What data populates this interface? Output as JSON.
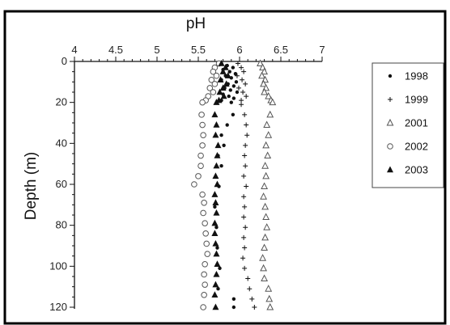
{
  "chart_data": {
    "type": "scatter",
    "title": "",
    "xlabel": "pH",
    "ylabel": "Depth (m)",
    "x_axis_position": "top",
    "y_axis_direction": "downward",
    "xlim": [
      4,
      7
    ],
    "ylim": [
      0,
      120
    ],
    "x_ticks": [
      "4",
      "4.5",
      "5",
      "5.5",
      "6",
      "6.5",
      "7"
    ],
    "y_ticks": [
      "0",
      "20",
      "40",
      "60",
      "80",
      "100",
      "120"
    ],
    "grid": false,
    "legend_position": "right",
    "colors": {
      "marker": "#111111",
      "hollow": "#555555",
      "axis": "#111111",
      "border": "#000000"
    },
    "series": [
      {
        "name": "1998",
        "marker": "small-dot",
        "points": [
          [
            5.78,
            1
          ],
          [
            5.85,
            2
          ],
          [
            5.92,
            3
          ],
          [
            5.8,
            4
          ],
          [
            5.88,
            5
          ],
          [
            5.95,
            6
          ],
          [
            5.83,
            7
          ],
          [
            5.9,
            8
          ],
          [
            5.78,
            9
          ],
          [
            5.96,
            10
          ],
          [
            5.86,
            11
          ],
          [
            5.93,
            12
          ],
          [
            5.82,
            13
          ],
          [
            5.89,
            14
          ],
          [
            5.97,
            15
          ],
          [
            5.8,
            16
          ],
          [
            5.87,
            17
          ],
          [
            5.93,
            18
          ],
          [
            5.78,
            19
          ],
          [
            5.9,
            20
          ],
          [
            5.92,
            26
          ],
          [
            5.85,
            31
          ],
          [
            5.78,
            36
          ],
          [
            5.81,
            41
          ],
          [
            5.74,
            46
          ],
          [
            5.78,
            51
          ],
          [
            5.75,
            61
          ],
          [
            5.7,
            71
          ],
          [
            5.72,
            81
          ],
          [
            5.73,
            91
          ],
          [
            5.76,
            101
          ],
          [
            5.74,
            111
          ],
          [
            5.93,
            116
          ],
          [
            5.93,
            120
          ]
        ]
      },
      {
        "name": "1999",
        "marker": "plus",
        "points": [
          [
            5.98,
            1
          ],
          [
            6.02,
            3
          ],
          [
            6.05,
            5
          ],
          [
            5.97,
            7
          ],
          [
            6.03,
            9
          ],
          [
            6.07,
            11
          ],
          [
            5.99,
            13
          ],
          [
            6.04,
            15
          ],
          [
            6.08,
            17
          ],
          [
            6.02,
            19
          ],
          [
            6.02,
            21
          ],
          [
            6.06,
            26
          ],
          [
            6.08,
            31
          ],
          [
            6.09,
            36
          ],
          [
            6.07,
            41
          ],
          [
            6.06,
            46
          ],
          [
            6.07,
            51
          ],
          [
            6.05,
            56
          ],
          [
            6.08,
            61
          ],
          [
            6.05,
            66
          ],
          [
            6.06,
            71
          ],
          [
            6.05,
            76
          ],
          [
            6.07,
            81
          ],
          [
            6.05,
            86
          ],
          [
            6.06,
            91
          ],
          [
            6.04,
            96
          ],
          [
            6.06,
            101
          ],
          [
            6.1,
            106
          ],
          [
            6.12,
            111
          ],
          [
            6.15,
            116
          ],
          [
            6.18,
            120
          ]
        ]
      },
      {
        "name": "2001",
        "marker": "hollow-triangle",
        "points": [
          [
            6.25,
            1
          ],
          [
            6.28,
            3
          ],
          [
            6.3,
            5
          ],
          [
            6.27,
            7
          ],
          [
            6.31,
            9
          ],
          [
            6.29,
            11
          ],
          [
            6.32,
            13
          ],
          [
            6.3,
            15
          ],
          [
            6.35,
            17
          ],
          [
            6.38,
            19
          ],
          [
            6.4,
            20
          ],
          [
            6.37,
            26
          ],
          [
            6.33,
            31
          ],
          [
            6.35,
            36
          ],
          [
            6.32,
            41
          ],
          [
            6.34,
            46
          ],
          [
            6.31,
            51
          ],
          [
            6.32,
            56
          ],
          [
            6.3,
            61
          ],
          [
            6.29,
            66
          ],
          [
            6.31,
            71
          ],
          [
            6.32,
            76
          ],
          [
            6.33,
            81
          ],
          [
            6.31,
            86
          ],
          [
            6.3,
            91
          ],
          [
            6.28,
            96
          ],
          [
            6.29,
            101
          ],
          [
            6.3,
            106
          ],
          [
            6.35,
            111
          ],
          [
            6.36,
            116
          ],
          [
            6.37,
            120
          ]
        ]
      },
      {
        "name": "2002",
        "marker": "hollow-circle",
        "points": [
          [
            5.75,
            1
          ],
          [
            5.7,
            3
          ],
          [
            5.68,
            5
          ],
          [
            5.72,
            7
          ],
          [
            5.66,
            9
          ],
          [
            5.7,
            11
          ],
          [
            5.64,
            13
          ],
          [
            5.68,
            15
          ],
          [
            5.62,
            17
          ],
          [
            5.59,
            19
          ],
          [
            5.55,
            20
          ],
          [
            5.54,
            26
          ],
          [
            5.55,
            31
          ],
          [
            5.56,
            36
          ],
          [
            5.55,
            41
          ],
          [
            5.53,
            46
          ],
          [
            5.53,
            51
          ],
          [
            5.5,
            56
          ],
          [
            5.45,
            60
          ],
          [
            5.55,
            65
          ],
          [
            5.57,
            69
          ],
          [
            5.56,
            74
          ],
          [
            5.58,
            79
          ],
          [
            5.59,
            84
          ],
          [
            5.6,
            89
          ],
          [
            5.61,
            94
          ],
          [
            5.58,
            99
          ],
          [
            5.57,
            104
          ],
          [
            5.58,
            109
          ],
          [
            5.57,
            114
          ],
          [
            5.56,
            120
          ]
        ]
      },
      {
        "name": "2003",
        "marker": "filled-triangle",
        "points": [
          [
            5.78,
            1
          ],
          [
            5.83,
            3
          ],
          [
            5.8,
            5
          ],
          [
            5.86,
            7
          ],
          [
            5.77,
            9
          ],
          [
            5.84,
            11
          ],
          [
            5.8,
            13
          ],
          [
            5.76,
            15
          ],
          [
            5.81,
            17
          ],
          [
            5.75,
            19
          ],
          [
            5.72,
            20
          ],
          [
            5.7,
            26
          ],
          [
            5.72,
            31
          ],
          [
            5.71,
            36
          ],
          [
            5.74,
            41
          ],
          [
            5.73,
            46
          ],
          [
            5.72,
            51
          ],
          [
            5.71,
            56
          ],
          [
            5.73,
            60
          ],
          [
            5.7,
            65
          ],
          [
            5.71,
            69
          ],
          [
            5.72,
            74
          ],
          [
            5.7,
            79
          ],
          [
            5.7,
            84
          ],
          [
            5.71,
            89
          ],
          [
            5.72,
            94
          ],
          [
            5.73,
            99
          ],
          [
            5.72,
            104
          ],
          [
            5.71,
            109
          ],
          [
            5.7,
            114
          ],
          [
            5.71,
            120
          ]
        ]
      }
    ]
  }
}
